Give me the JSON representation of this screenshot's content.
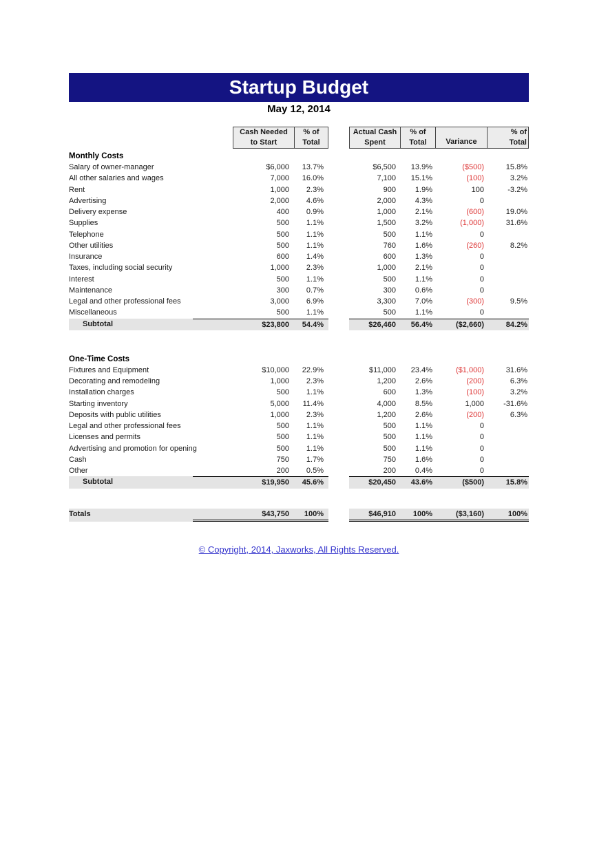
{
  "page": {
    "title": "Startup Budget",
    "date": "May 12, 2014",
    "copyright": "© Copyright, 2014, Jaxworks, All Rights Reserved."
  },
  "colors": {
    "title_bar_bg": "#141482",
    "title_text": "#ffffff",
    "negative_value": "#dd3333",
    "band_gray": "#e4e4e4",
    "header_cell_bg": "#ececec",
    "link_blue": "#3333cc"
  },
  "column_headers": {
    "cash_needed_line1": "Cash Needed",
    "cash_needed_line2": "to Start",
    "pct1_line1": "% of",
    "pct1_line2": "Total",
    "actual_line1": "Actual Cash",
    "actual_line2": "Spent",
    "pct2_line1": "% of",
    "pct2_line2": "Total",
    "variance": "Variance",
    "pct3_line1": "% of",
    "pct3_line2": "Total"
  },
  "table": {
    "sections": [
      {
        "heading": "Monthly Costs",
        "rows": [
          {
            "label": "Salary of owner-manager",
            "cash_needed": "$6,000",
            "pct1": "13.7%",
            "actual": "$6,500",
            "pct2": "13.9%",
            "variance": "($500)",
            "variance_negative": true,
            "pct3": "15.8%"
          },
          {
            "label": "All other salaries and wages",
            "cash_needed": "7,000",
            "pct1": "16.0%",
            "actual": "7,100",
            "pct2": "15.1%",
            "variance": "(100)",
            "variance_negative": true,
            "pct3": "3.2%"
          },
          {
            "label": "Rent",
            "cash_needed": "1,000",
            "pct1": "2.3%",
            "actual": "900",
            "pct2": "1.9%",
            "variance": "100",
            "variance_negative": false,
            "pct3": "-3.2%"
          },
          {
            "label": "Advertising",
            "cash_needed": "2,000",
            "pct1": "4.6%",
            "actual": "2,000",
            "pct2": "4.3%",
            "variance": "0",
            "variance_negative": false,
            "pct3": ""
          },
          {
            "label": "Delivery expense",
            "cash_needed": "400",
            "pct1": "0.9%",
            "actual": "1,000",
            "pct2": "2.1%",
            "variance": "(600)",
            "variance_negative": true,
            "pct3": "19.0%"
          },
          {
            "label": "Supplies",
            "cash_needed": "500",
            "pct1": "1.1%",
            "actual": "1,500",
            "pct2": "3.2%",
            "variance": "(1,000)",
            "variance_negative": true,
            "pct3": "31.6%"
          },
          {
            "label": "Telephone",
            "cash_needed": "500",
            "pct1": "1.1%",
            "actual": "500",
            "pct2": "1.1%",
            "variance": "0",
            "variance_negative": false,
            "pct3": ""
          },
          {
            "label": "Other utilities",
            "cash_needed": "500",
            "pct1": "1.1%",
            "actual": "760",
            "pct2": "1.6%",
            "variance": "(260)",
            "variance_negative": true,
            "pct3": "8.2%"
          },
          {
            "label": "Insurance",
            "cash_needed": "600",
            "pct1": "1.4%",
            "actual": "600",
            "pct2": "1.3%",
            "variance": "0",
            "variance_negative": false,
            "pct3": ""
          },
          {
            "label": "Taxes, including social security",
            "cash_needed": "1,000",
            "pct1": "2.3%",
            "actual": "1,000",
            "pct2": "2.1%",
            "variance": "0",
            "variance_negative": false,
            "pct3": ""
          },
          {
            "label": "Interest",
            "cash_needed": "500",
            "pct1": "1.1%",
            "actual": "500",
            "pct2": "1.1%",
            "variance": "0",
            "variance_negative": false,
            "pct3": ""
          },
          {
            "label": "Maintenance",
            "cash_needed": "300",
            "pct1": "0.7%",
            "actual": "300",
            "pct2": "0.6%",
            "variance": "0",
            "variance_negative": false,
            "pct3": ""
          },
          {
            "label": "Legal and other professional fees",
            "cash_needed": "3,000",
            "pct1": "6.9%",
            "actual": "3,300",
            "pct2": "7.0%",
            "variance": "(300)",
            "variance_negative": true,
            "pct3": "9.5%"
          },
          {
            "label": "Miscellaneous",
            "cash_needed": "500",
            "pct1": "1.1%",
            "actual": "500",
            "pct2": "1.1%",
            "variance": "0",
            "variance_negative": false,
            "pct3": ""
          }
        ],
        "subtotal": {
          "label": "Subtotal",
          "cash_needed": "$23,800",
          "pct1": "54.4%",
          "actual": "$26,460",
          "pct2": "56.4%",
          "variance": "($2,660)",
          "variance_negative": false,
          "pct3": "84.2%"
        }
      },
      {
        "heading": "One-Time Costs",
        "rows": [
          {
            "label": "Fixtures and Equipment",
            "cash_needed": "$10,000",
            "pct1": "22.9%",
            "actual": "$11,000",
            "pct2": "23.4%",
            "variance": "($1,000)",
            "variance_negative": true,
            "pct3": "31.6%"
          },
          {
            "label": "Decorating and remodeling",
            "cash_needed": "1,000",
            "pct1": "2.3%",
            "actual": "1,200",
            "pct2": "2.6%",
            "variance": "(200)",
            "variance_negative": true,
            "pct3": "6.3%"
          },
          {
            "label": "Installation charges",
            "cash_needed": "500",
            "pct1": "1.1%",
            "actual": "600",
            "pct2": "1.3%",
            "variance": "(100)",
            "variance_negative": true,
            "pct3": "3.2%"
          },
          {
            "label": "Starting inventory",
            "cash_needed": "5,000",
            "pct1": "11.4%",
            "actual": "4,000",
            "pct2": "8.5%",
            "variance": "1,000",
            "variance_negative": false,
            "pct3": "-31.6%"
          },
          {
            "label": "Deposits with public utilities",
            "cash_needed": "1,000",
            "pct1": "2.3%",
            "actual": "1,200",
            "pct2": "2.6%",
            "variance": "(200)",
            "variance_negative": true,
            "pct3": "6.3%"
          },
          {
            "label": "Legal and other professional fees",
            "cash_needed": "500",
            "pct1": "1.1%",
            "actual": "500",
            "pct2": "1.1%",
            "variance": "0",
            "variance_negative": false,
            "pct3": ""
          },
          {
            "label": "Licenses and permits",
            "cash_needed": "500",
            "pct1": "1.1%",
            "actual": "500",
            "pct2": "1.1%",
            "variance": "0",
            "variance_negative": false,
            "pct3": ""
          },
          {
            "label": "Advertising and promotion for opening",
            "cash_needed": "500",
            "pct1": "1.1%",
            "actual": "500",
            "pct2": "1.1%",
            "variance": "0",
            "variance_negative": false,
            "pct3": ""
          },
          {
            "label": "Cash",
            "cash_needed": "750",
            "pct1": "1.7%",
            "actual": "750",
            "pct2": "1.6%",
            "variance": "0",
            "variance_negative": false,
            "pct3": ""
          },
          {
            "label": "Other",
            "cash_needed": "200",
            "pct1": "0.5%",
            "actual": "200",
            "pct2": "0.4%",
            "variance": "0",
            "variance_negative": false,
            "pct3": ""
          }
        ],
        "subtotal": {
          "label": "Subtotal",
          "cash_needed": "$19,950",
          "pct1": "45.6%",
          "actual": "$20,450",
          "pct2": "43.6%",
          "variance": "($500)",
          "variance_negative": false,
          "pct3": "15.8%"
        }
      }
    ],
    "totals": {
      "label": "Totals",
      "cash_needed": "$43,750",
      "pct1": "100%",
      "actual": "$46,910",
      "pct2": "100%",
      "variance": "($3,160)",
      "variance_negative": false,
      "pct3": "100%"
    }
  }
}
